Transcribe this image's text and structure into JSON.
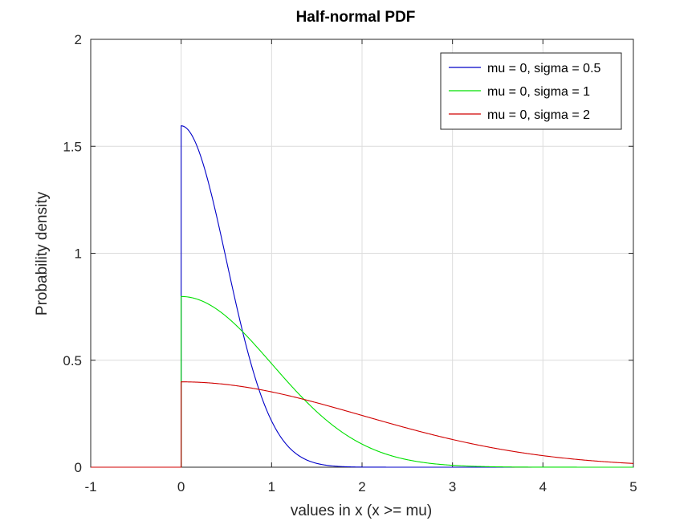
{
  "chart_data": {
    "type": "line",
    "title": "Half-normal PDF",
    "xlabel": "values in x (x >= mu)",
    "ylabel": "Probability density",
    "xlim": [
      -1,
      5
    ],
    "ylim": [
      0,
      2
    ],
    "xticks": [
      "-1",
      "0",
      "1",
      "2",
      "3",
      "4",
      "5"
    ],
    "yticks": [
      "0",
      "0.5",
      "1",
      "1.5",
      "2"
    ],
    "grid": true,
    "legend_position": "top-right",
    "series": [
      {
        "name": "mu = 0, sigma = 0.5",
        "mu": 0,
        "sigma": 0.5,
        "color": "#0000c8",
        "x": [
          -1,
          0,
          0,
          0.25,
          0.5,
          0.75,
          1.0,
          1.25,
          1.5,
          2.0,
          2.5,
          3.0,
          3.65
        ],
        "y": [
          0,
          0,
          1.5958,
          1.4083,
          0.9679,
          0.5181,
          0.216,
          0.0701,
          0.0177,
          0.0005,
          0.0,
          0.0,
          0.0
        ]
      },
      {
        "name": "mu = 0, sigma = 1",
        "mu": 0,
        "sigma": 1,
        "color": "#00e000",
        "x": [
          -1,
          0,
          0,
          0.5,
          1.0,
          1.5,
          2.0,
          2.5,
          3.0,
          3.5,
          4.0,
          5.0
        ],
        "y": [
          0,
          0,
          0.7979,
          0.7041,
          0.4839,
          0.2591,
          0.108,
          0.035,
          0.0089,
          0.0017,
          0.0003,
          0.0
        ]
      },
      {
        "name": "mu = 0, sigma = 2",
        "mu": 0,
        "sigma": 2,
        "color": "#d00000",
        "x": [
          -1,
          0,
          0,
          0.5,
          1.0,
          1.5,
          2.0,
          2.5,
          3.0,
          3.5,
          4.0,
          4.5,
          5.0
        ],
        "y": [
          0,
          0,
          0.3989,
          0.3865,
          0.3521,
          0.3011,
          0.242,
          0.1826,
          0.1295,
          0.0863,
          0.054,
          0.0317,
          0.0175
        ]
      }
    ]
  }
}
